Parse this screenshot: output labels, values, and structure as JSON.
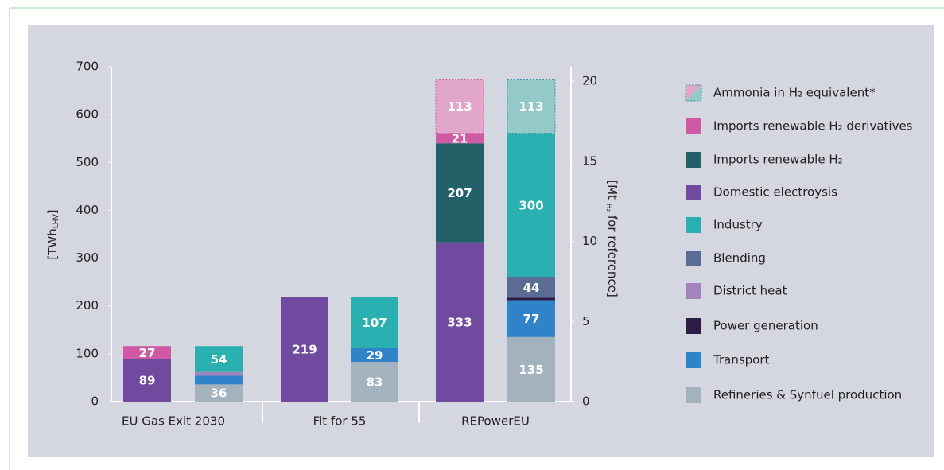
{
  "chart_data": {
    "type": "stacked-bar",
    "y_label": {
      "main": "[TWh",
      "sub": "LHV",
      "end": "]"
    },
    "y2_label": {
      "main": "[Mt",
      "sub": "H₂",
      "end": "for reference]"
    },
    "categories": [
      "EU Gas Exit 2030",
      "Fit for 55",
      "REPowerEU"
    ],
    "ylim": [
      0,
      700
    ],
    "yticks": [
      0,
      100,
      200,
      300,
      400,
      500,
      600,
      700
    ],
    "y2lim": [
      0,
      20.9
    ],
    "y2ticks": [
      0,
      5,
      10,
      15,
      20
    ],
    "series": [
      {
        "name": "Ammonia in H₂ equivalent*",
        "colors": [
          "#e3a6cb",
          "#93c9c9"
        ],
        "values": [
          [
            null,
            null
          ],
          [
            null,
            null
          ],
          [
            113,
            113
          ]
        ]
      },
      {
        "name": "Imports renewable H₂ derivatives",
        "color": "#cf5aa4",
        "values": [
          [
            27,
            null
          ],
          [
            null,
            null
          ],
          [
            21,
            null
          ]
        ]
      },
      {
        "name": "Imports renewable H₂",
        "color": "#246068",
        "values": [
          [
            null,
            null
          ],
          [
            null,
            null
          ],
          [
            207,
            null
          ]
        ]
      },
      {
        "name": "Domestic electroysis",
        "color": "#6f4a9e",
        "values": [
          [
            89,
            null
          ],
          [
            219,
            null
          ],
          [
            333,
            null
          ]
        ]
      },
      {
        "name": "Industry",
        "color": "#2ab0b0",
        "values": [
          [
            null,
            54
          ],
          [
            null,
            107
          ],
          [
            null,
            300
          ]
        ]
      },
      {
        "name": "Blending",
        "color": "#5a6c94",
        "values": [
          [
            null,
            null
          ],
          [
            null,
            null
          ],
          [
            null,
            44
          ]
        ]
      },
      {
        "name": "District heat",
        "color": "#a283bb",
        "values": [
          [
            null,
            8
          ],
          [
            null,
            null
          ],
          [
            null,
            null
          ]
        ]
      },
      {
        "name": "Power generation",
        "color": "#2d1c45",
        "values": [
          [
            null,
            null
          ],
          [
            null,
            null
          ],
          [
            null,
            5
          ]
        ]
      },
      {
        "name": "Transport",
        "color": "#2f83c9",
        "values": [
          [
            null,
            18
          ],
          [
            null,
            29
          ],
          [
            null,
            77
          ]
        ]
      },
      {
        "name": "Refineries & Synfuel production",
        "color": "#a3b2bd",
        "values": [
          [
            null,
            36
          ],
          [
            null,
            83
          ],
          [
            null,
            135
          ]
        ]
      }
    ]
  }
}
